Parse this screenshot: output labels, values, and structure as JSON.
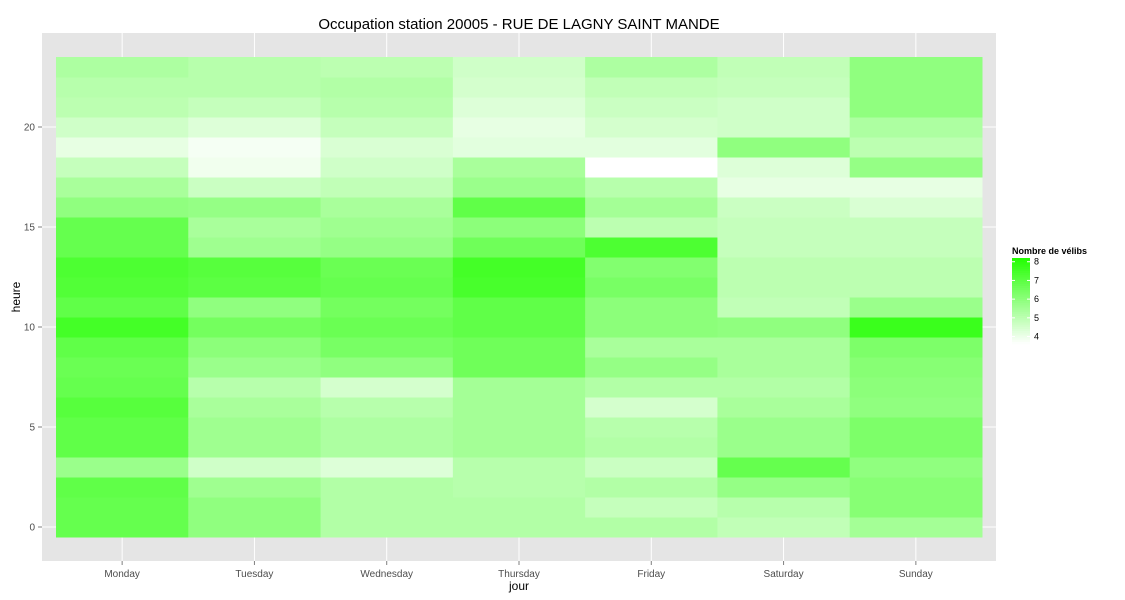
{
  "chart_data": {
    "type": "heatmap",
    "title": "Occupation station 20005 - RUE DE LAGNY SAINT MANDE",
    "xlabel": "jour",
    "ylabel": "heure",
    "x_categories": [
      "Monday",
      "Tuesday",
      "Wednesday",
      "Thursday",
      "Friday",
      "Saturday",
      "Sunday"
    ],
    "y_categories": [
      0,
      1,
      2,
      3,
      4,
      5,
      6,
      7,
      8,
      9,
      10,
      11,
      12,
      13,
      14,
      15,
      16,
      17,
      18,
      19,
      20,
      21,
      22,
      23
    ],
    "y_ticks": [
      0,
      5,
      10,
      15,
      20
    ],
    "ylim": [
      -0.5,
      23.5
    ],
    "values_by_day": {
      "Monday": [
        6.8,
        6.8,
        6.9,
        5.7,
        6.9,
        6.9,
        7.1,
        6.8,
        6.7,
        6.9,
        7.5,
        6.9,
        7.2,
        7.3,
        6.8,
        6.8,
        5.9,
        5.4,
        4.8,
        4.1,
        4.6,
        5.0,
        5.1,
        5.3
      ],
      "Tuesday": [
        5.9,
        5.9,
        5.6,
        4.6,
        5.6,
        5.6,
        5.4,
        5.1,
        5.7,
        6.0,
        6.5,
        5.9,
        7.0,
        7.1,
        5.6,
        5.4,
        5.8,
        4.7,
        3.9,
        3.8,
        4.3,
        4.8,
        5.1,
        5.1
      ],
      "Wednesday": [
        5.2,
        5.2,
        5.2,
        4.3,
        5.3,
        5.3,
        5.1,
        4.5,
        5.9,
        6.4,
        6.7,
        6.5,
        6.8,
        6.7,
        5.8,
        5.6,
        5.4,
        4.9,
        4.6,
        4.4,
        4.8,
        5.1,
        5.2,
        5.0
      ],
      "Thursday": [
        5.2,
        5.2,
        5.1,
        5.1,
        5.5,
        5.5,
        5.5,
        5.5,
        6.6,
        6.6,
        6.9,
        6.9,
        7.4,
        7.5,
        6.6,
        6.0,
        6.9,
        5.7,
        5.4,
        4.2,
        4.1,
        4.3,
        4.5,
        4.6
      ],
      "Friday": [
        5.2,
        4.8,
        5.2,
        4.7,
        5.2,
        5.1,
        4.5,
        5.2,
        5.8,
        5.4,
        6.0,
        6.0,
        6.4,
        6.2,
        7.3,
        5.0,
        5.5,
        5.1,
        3.6,
        4.2,
        4.5,
        4.7,
        4.9,
        5.3
      ],
      "Saturday": [
        4.9,
        5.1,
        5.8,
        6.8,
        5.7,
        5.7,
        5.4,
        5.2,
        5.4,
        5.4,
        5.9,
        4.9,
        5.0,
        5.0,
        4.8,
        4.8,
        4.7,
        4.1,
        4.3,
        5.9,
        4.6,
        4.6,
        4.8,
        4.9
      ],
      "Sunday": [
        5.5,
        6.1,
        6.1,
        5.9,
        6.3,
        6.3,
        5.9,
        6.0,
        6.1,
        6.3,
        7.7,
        5.7,
        5.0,
        5.0,
        4.8,
        4.8,
        4.4,
        4.1,
        5.8,
        5.0,
        5.3,
        5.9,
        5.9,
        5.9
      ]
    },
    "legend": {
      "title": "Nombre de vélibs",
      "labels": [
        "8",
        "7",
        "6",
        "5",
        "4"
      ],
      "breaks": [
        8,
        7,
        6,
        5,
        4
      ],
      "min": 3.6,
      "max": 8.2,
      "low_color": "#ffffff",
      "high_color": "#22ff00"
    },
    "panel_background": "#e5e5e5",
    "grid_color": "#ffffff"
  }
}
